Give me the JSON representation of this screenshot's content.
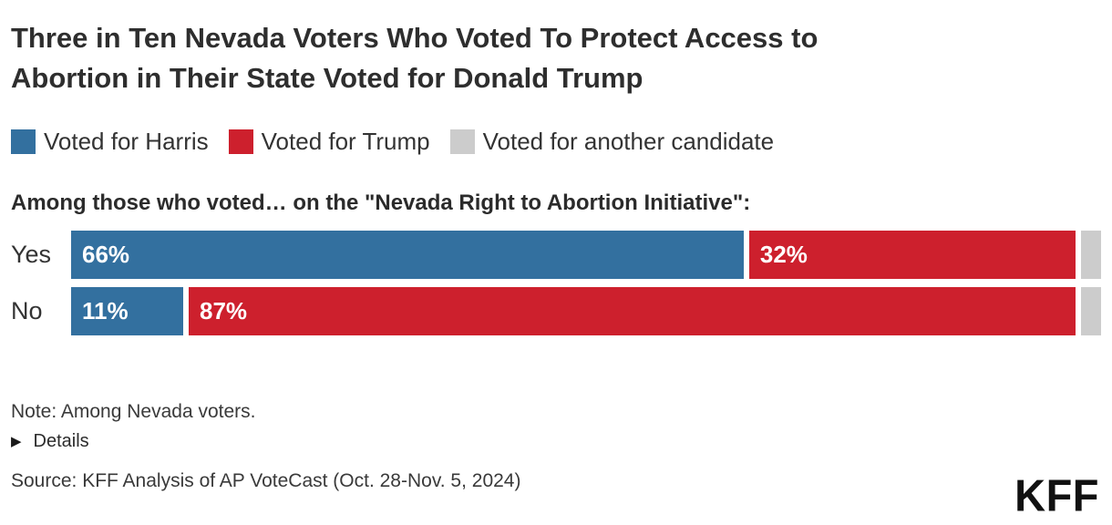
{
  "title": {
    "line1": "Three in Ten Nevada Voters Who Voted To Protect Access to",
    "line2": "Abortion in Their State Voted for Donald Trump"
  },
  "legend": [
    {
      "label": "Voted for Harris",
      "color": "#33709f"
    },
    {
      "label": "Voted for Trump",
      "color": "#cd202d"
    },
    {
      "label": "Voted for another candidate",
      "color": "#cccccc"
    }
  ],
  "chart_data": {
    "type": "bar",
    "orientation": "horizontal-stacked",
    "subtitle": "Among those who voted… on the \"Nevada Right to Abortion Initiative\":",
    "categories": [
      "Yes",
      "No"
    ],
    "series": [
      {
        "name": "Voted for Harris",
        "color": "#33709f",
        "values": [
          66,
          11
        ]
      },
      {
        "name": "Voted for Trump",
        "color": "#cd202d",
        "values": [
          32,
          87
        ]
      },
      {
        "name": "Voted for another candidate",
        "color": "#cccccc",
        "values": [
          2,
          2
        ]
      }
    ],
    "value_format": "percent",
    "label_suffix": "%",
    "label_min_value": 5,
    "xlim": [
      0,
      100
    ],
    "grid": false,
    "legend_position": "top"
  },
  "icons": {
    "details_expander": "▶"
  },
  "footer": {
    "note": "Note: Among Nevada voters.",
    "details_label": "Details",
    "source": "Source: KFF Analysis of AP VoteCast (Oct. 28-Nov. 5, 2024)",
    "logo_text": "KFF"
  }
}
